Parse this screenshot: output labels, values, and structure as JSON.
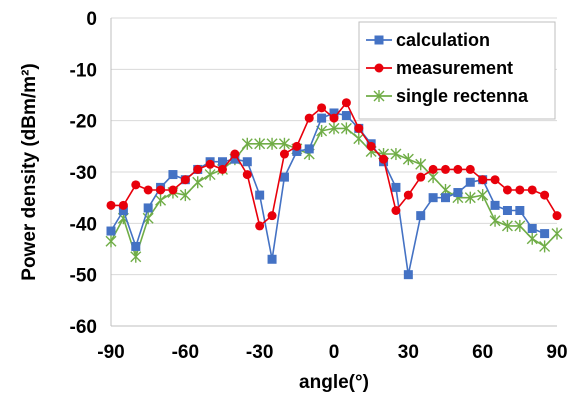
{
  "chart_data": {
    "type": "line",
    "title": "",
    "xlabel": "angle(°)",
    "ylabel": "Power density (dBm/m²)",
    "xlim": [
      -90,
      90
    ],
    "ylim": [
      -60,
      0
    ],
    "xticks": [
      -90,
      -60,
      -30,
      0,
      30,
      60,
      90
    ],
    "yticks": [
      0,
      -10,
      -20,
      -30,
      -40,
      -50,
      -60
    ],
    "xtick_labels": [
      "-90",
      "-60",
      "-30",
      "0",
      "30",
      "60",
      "90"
    ],
    "ytick_labels": [
      "0",
      "-10",
      "-20",
      "-30",
      "-40",
      "-50",
      "-60"
    ],
    "grid": "horizontal",
    "legend_position": "top-right",
    "series": [
      {
        "name": "calculation",
        "color": "#4472C4",
        "marker": "square",
        "x": [
          -90,
          -85,
          -80,
          -75,
          -70,
          -65,
          -60,
          -55,
          -50,
          -45,
          -40,
          -35,
          -30,
          -25,
          -20,
          -15,
          -10,
          -5,
          0,
          5,
          10,
          15,
          20,
          25,
          30,
          35,
          40,
          45,
          50,
          55,
          60,
          65,
          70,
          75,
          80,
          85
        ],
        "values": [
          -41.5,
          -37.5,
          -44.5,
          -37,
          -33,
          -30.5,
          -31.5,
          -29.5,
          -28,
          -28,
          -27.5,
          -28,
          -34.5,
          -47,
          -31,
          -26,
          -25.5,
          -19.5,
          -18.5,
          -19,
          -21.5,
          -24.5,
          -28,
          -33,
          -50,
          -38.5,
          -35,
          -35,
          -34,
          -32,
          -31.5,
          -36.5,
          -37.5,
          -37.5,
          -41,
          -42
        ]
      },
      {
        "name": "measurement",
        "color": "#E8000B",
        "marker": "circle",
        "x": [
          -90,
          -85,
          -80,
          -75,
          -70,
          -65,
          -60,
          -55,
          -50,
          -45,
          -40,
          -35,
          -30,
          -25,
          -20,
          -15,
          -10,
          -5,
          0,
          5,
          10,
          15,
          20,
          25,
          30,
          35,
          40,
          45,
          50,
          55,
          60,
          65,
          70,
          75,
          80,
          85,
          90
        ],
        "values": [
          -36.5,
          -36.5,
          -32.5,
          -33.5,
          -33.5,
          -33.5,
          -31.5,
          -29.5,
          -28.5,
          -29.5,
          -26.5,
          -30.5,
          -40.5,
          -38.5,
          -26.5,
          -25,
          -19.5,
          -17.5,
          -19.5,
          -16.5,
          -21.5,
          -25,
          -27.5,
          -37.5,
          -34.5,
          -31,
          -29.5,
          -29.5,
          -29.5,
          -29.5,
          -31.5,
          -31.5,
          -33.5,
          -33.5,
          -33.5,
          -34.5,
          -38.5
        ]
      },
      {
        "name": "single rectenna",
        "color": "#70AD47",
        "marker": "asterisk",
        "x": [
          -90,
          -85,
          -80,
          -75,
          -70,
          -65,
          -60,
          -55,
          -50,
          -45,
          -40,
          -35,
          -30,
          -25,
          -20,
          -15,
          -10,
          -5,
          0,
          5,
          10,
          15,
          20,
          25,
          30,
          35,
          40,
          45,
          50,
          55,
          60,
          65,
          70,
          75,
          80,
          85,
          90
        ],
        "values": [
          -43.5,
          -39,
          -46.5,
          -39,
          -35.5,
          -34,
          -34.5,
          -32,
          -30.5,
          -29.5,
          -27.5,
          -24.5,
          -24.5,
          -24.5,
          -24.5,
          -25.5,
          -26.5,
          -22,
          -21.5,
          -21.5,
          -23.5,
          -26,
          -26.5,
          -26.5,
          -27.5,
          -28.5,
          -31,
          -33.5,
          -35,
          -35,
          -34.5,
          -39.5,
          -40.5,
          -40.5,
          -43,
          -44.5,
          -42
        ]
      }
    ]
  }
}
